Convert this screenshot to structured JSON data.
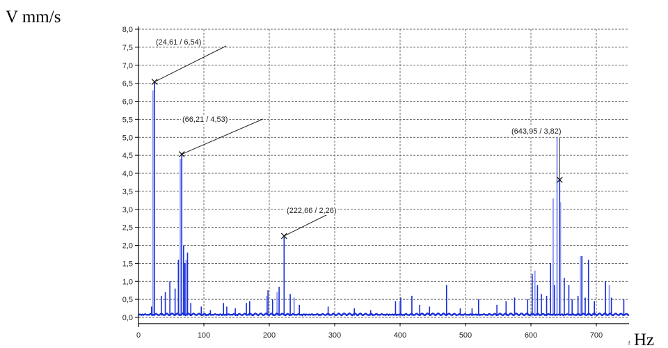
{
  "chart_data": {
    "type": "line",
    "ylabel": "V mm/s",
    "xlabel": "Hz",
    "xlabel_prefix": "f",
    "xlim": [
      0,
      750
    ],
    "ylim": [
      0,
      8.0
    ],
    "xticks": [
      0,
      100,
      200,
      300,
      400,
      500,
      600,
      700
    ],
    "yticks": [
      "0,0",
      "0,5",
      "1,0",
      "1,5",
      "2,0",
      "2,5",
      "3,0",
      "3,5",
      "4,0",
      "4,5",
      "5,0",
      "5,5",
      "6,0",
      "6,5",
      "7,0",
      "7,5",
      "8,0"
    ],
    "grid": true,
    "series_color_primary": "#1a2fd6",
    "series_color_secondary": "#9aa5f5",
    "peaks": [
      {
        "x": 24.61,
        "y": 6.54,
        "label": "(24,61 / 6,54)"
      },
      {
        "x": 66.21,
        "y": 4.53,
        "label": "(66,21 / 4,53)"
      },
      {
        "x": 222.66,
        "y": 2.26,
        "label": "(222,66 / 2,26)"
      },
      {
        "x": 643.95,
        "y": 3.82,
        "label": "(643,95 / 3,82)"
      }
    ],
    "spectrum_lines": [
      {
        "x": 20,
        "y": 0.3
      },
      {
        "x": 24.61,
        "y": 6.54
      },
      {
        "x": 35,
        "y": 0.6
      },
      {
        "x": 41,
        "y": 0.7
      },
      {
        "x": 48,
        "y": 1.0
      },
      {
        "x": 56,
        "y": 0.8
      },
      {
        "x": 61,
        "y": 1.6
      },
      {
        "x": 66.21,
        "y": 4.53
      },
      {
        "x": 69,
        "y": 2.0
      },
      {
        "x": 71,
        "y": 1.5
      },
      {
        "x": 75,
        "y": 1.8
      },
      {
        "x": 80,
        "y": 0.4
      },
      {
        "x": 96,
        "y": 0.3
      },
      {
        "x": 110,
        "y": 0.2
      },
      {
        "x": 130,
        "y": 0.4
      },
      {
        "x": 135,
        "y": 0.3
      },
      {
        "x": 148,
        "y": 0.25
      },
      {
        "x": 165,
        "y": 0.4
      },
      {
        "x": 170,
        "y": 0.45
      },
      {
        "x": 198,
        "y": 0.75
      },
      {
        "x": 205,
        "y": 0.5
      },
      {
        "x": 215,
        "y": 0.85
      },
      {
        "x": 222.66,
        "y": 2.26
      },
      {
        "x": 232,
        "y": 0.65
      },
      {
        "x": 246,
        "y": 0.35
      },
      {
        "x": 290,
        "y": 0.3
      },
      {
        "x": 330,
        "y": 0.25
      },
      {
        "x": 355,
        "y": 0.2
      },
      {
        "x": 393,
        "y": 0.45
      },
      {
        "x": 401,
        "y": 0.55
      },
      {
        "x": 418,
        "y": 0.6
      },
      {
        "x": 430,
        "y": 0.35
      },
      {
        "x": 445,
        "y": 0.3
      },
      {
        "x": 471,
        "y": 0.9
      },
      {
        "x": 492,
        "y": 0.25
      },
      {
        "x": 510,
        "y": 0.25
      },
      {
        "x": 520,
        "y": 0.5
      },
      {
        "x": 548,
        "y": 0.35
      },
      {
        "x": 562,
        "y": 0.45
      },
      {
        "x": 575,
        "y": 0.55
      },
      {
        "x": 595,
        "y": 0.5
      },
      {
        "x": 602,
        "y": 1.2
      },
      {
        "x": 610,
        "y": 0.9
      },
      {
        "x": 616,
        "y": 0.65
      },
      {
        "x": 624,
        "y": 0.6
      },
      {
        "x": 630,
        "y": 1.5
      },
      {
        "x": 636,
        "y": 0.9
      },
      {
        "x": 643.95,
        "y": 3.82
      },
      {
        "x": 651,
        "y": 1.1
      },
      {
        "x": 658,
        "y": 0.9
      },
      {
        "x": 663,
        "y": 0.5
      },
      {
        "x": 672,
        "y": 0.6
      },
      {
        "x": 678,
        "y": 1.7
      },
      {
        "x": 683,
        "y": 0.55
      },
      {
        "x": 688,
        "y": 1.6
      },
      {
        "x": 697,
        "y": 0.45
      },
      {
        "x": 714,
        "y": 1.0
      },
      {
        "x": 723,
        "y": 0.55
      },
      {
        "x": 742,
        "y": 0.5
      }
    ],
    "spectrum_lines_light": [
      {
        "x": 22,
        "y": 6.3
      },
      {
        "x": 64,
        "y": 4.4
      },
      {
        "x": 73,
        "y": 1.6
      },
      {
        "x": 196,
        "y": 0.6
      },
      {
        "x": 212,
        "y": 0.7
      },
      {
        "x": 238,
        "y": 0.55
      },
      {
        "x": 399,
        "y": 0.45
      },
      {
        "x": 606,
        "y": 1.3
      },
      {
        "x": 634,
        "y": 3.3
      },
      {
        "x": 640,
        "y": 5.0
      },
      {
        "x": 645,
        "y": 3.2
      },
      {
        "x": 676,
        "y": 1.7
      },
      {
        "x": 720,
        "y": 0.9
      }
    ]
  }
}
